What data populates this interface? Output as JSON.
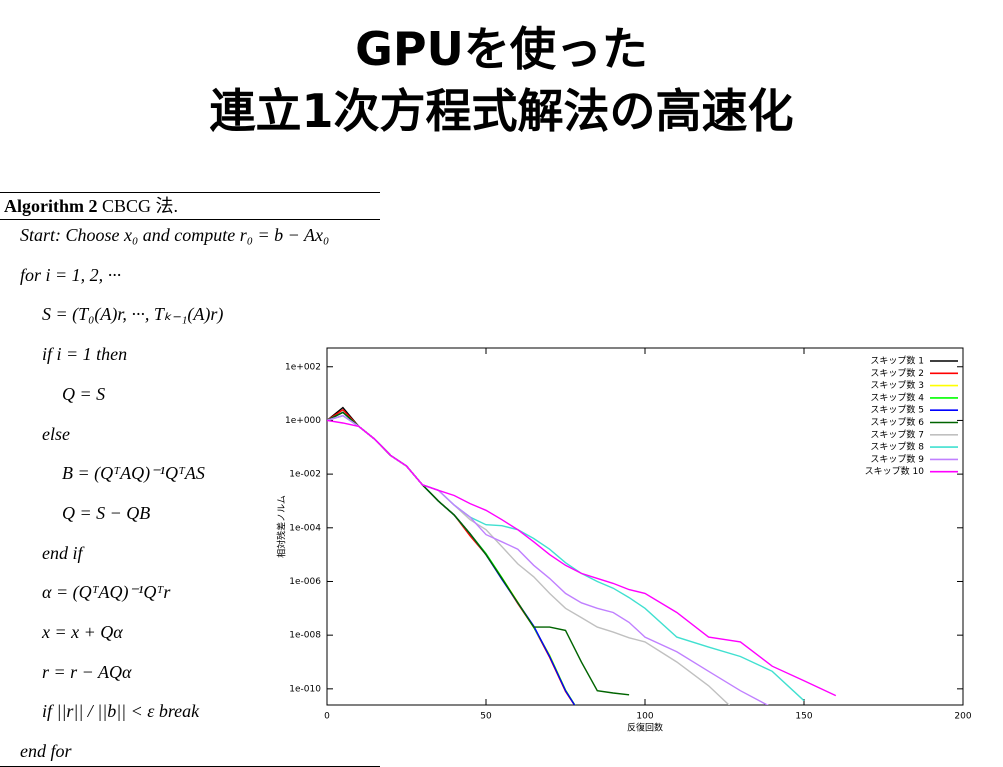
{
  "title": [
    "GPUを使った",
    "連立1次方程式解法の高速化"
  ],
  "algorithm": {
    "label": "Algorithm 2",
    "name": "CBCG 法.",
    "lines": [
      "Start: Choose x₀ and compute r₀ = b − Ax₀",
      "for i = 1, 2, ···",
      "S = (T₀(A)r, ···, Tₖ₋₁(A)r)",
      "if i = 1 then",
      "Q = S",
      "else",
      "B = (QᵀAQ)⁻¹QᵀAS",
      "Q = S − QB",
      "end if",
      "α = (QᵀAQ)⁻¹Qᵀr",
      "x = x + Qα",
      "r = r − AQα",
      "if ||r|| / ||b|| < ε break",
      "end for"
    ]
  },
  "chart_data": {
    "type": "line",
    "xlabel": "反復回数",
    "ylabel": "相対残差ノルム",
    "log_y": true,
    "xlim": [
      0,
      200
    ],
    "xticks": [
      0,
      50,
      100,
      150,
      200
    ],
    "ylim": [
      2.5e-11,
      500
    ],
    "yticks": [
      {
        "value": 1e-10,
        "label": "1e-010"
      },
      {
        "value": 1e-08,
        "label": "1e-008"
      },
      {
        "value": 1e-06,
        "label": "1e-006"
      },
      {
        "value": 0.0001,
        "label": "1e-004"
      },
      {
        "value": 0.01,
        "label": "1e-002"
      },
      {
        "value": 1,
        "label": "1e+000"
      },
      {
        "value": 100,
        "label": "1e+002"
      }
    ],
    "x": [
      0,
      5,
      10,
      15,
      20,
      25,
      30,
      35,
      40,
      45,
      50,
      55,
      60,
      65,
      70,
      75,
      80,
      85,
      90,
      95,
      100,
      110,
      120,
      130,
      140,
      150,
      160
    ],
    "series": [
      {
        "name": "スキップ数 1",
        "color": "#000000",
        "values": [
          1,
          3,
          0.6,
          0.2,
          0.05,
          0.02,
          0.004,
          0.001,
          0.0003,
          6e-05,
          1e-05,
          1.3e-06,
          1.6e-07,
          2e-08,
          1.6e-09,
          8.5e-11,
          1e-11,
          null,
          null,
          null,
          null,
          null,
          null,
          null,
          null,
          null,
          null
        ]
      },
      {
        "name": "スキップ数 2",
        "color": "#ff0000",
        "values": [
          1,
          2.5,
          0.6,
          0.2,
          0.05,
          0.02,
          0.004,
          0.001,
          0.0003,
          5e-05,
          1e-05,
          1.3e-06,
          1.5e-07,
          2e-08,
          1.5e-09,
          8e-11,
          1e-11,
          null,
          null,
          null,
          null,
          null,
          null,
          null,
          null,
          null,
          null
        ]
      },
      {
        "name": "スキップ数 3",
        "color": "#ffff00",
        "values": [
          1,
          2,
          0.6,
          0.2,
          0.05,
          0.02,
          0.004,
          0.001,
          0.0003,
          6e-05,
          1e-05,
          1.4e-06,
          1.7e-07,
          2e-08,
          1.8e-09,
          9e-11,
          1e-11,
          null,
          null,
          null,
          null,
          null,
          null,
          null,
          null,
          null,
          null
        ]
      },
      {
        "name": "スキップ数 4",
        "color": "#00ff00",
        "values": [
          1,
          2,
          0.6,
          0.2,
          0.05,
          0.02,
          0.004,
          0.001,
          0.0003,
          6e-05,
          1.1e-05,
          1.4e-06,
          1.6e-07,
          2e-08,
          1.7e-09,
          9e-11,
          1e-11,
          null,
          null,
          null,
          null,
          null,
          null,
          null,
          null,
          null,
          null
        ]
      },
      {
        "name": "スキップ数 5",
        "color": "#0000ff",
        "values": [
          1,
          2,
          0.6,
          0.2,
          0.05,
          0.02,
          0.004,
          0.001,
          0.0003,
          6e-05,
          1e-05,
          1.2e-06,
          1.6e-07,
          2.2e-08,
          1.6e-09,
          8.5e-11,
          1e-11,
          null,
          null,
          null,
          null,
          null,
          null,
          null,
          null,
          null,
          null
        ]
      },
      {
        "name": "スキップ数 6",
        "color": "#006400",
        "values": [
          1,
          2,
          0.6,
          0.2,
          0.05,
          0.02,
          0.004,
          0.001,
          0.0003,
          6e-05,
          1e-05,
          1.3e-06,
          1.6e-07,
          2e-08,
          2e-08,
          1.5e-08,
          1e-09,
          8.5e-11,
          7e-11,
          6e-11,
          null,
          null,
          null,
          null,
          null,
          null,
          null
        ]
      },
      {
        "name": "スキップ数 7",
        "color": "#c0c0c0",
        "values": [
          1,
          1.5,
          0.6,
          0.2,
          0.05,
          0.02,
          0.004,
          0.0025,
          0.0007,
          0.0002,
          8.5e-05,
          2e-05,
          4.5e-06,
          1.5e-06,
          3.6e-07,
          1e-07,
          4.5e-08,
          2e-08,
          1.3e-08,
          8e-09,
          5.6e-09,
          1e-09,
          1.3e-10,
          1e-11,
          null,
          null,
          null
        ]
      },
      {
        "name": "スキップ数 8",
        "color": "#40e0d0",
        "values": [
          1,
          1.5,
          0.6,
          0.2,
          0.05,
          0.02,
          0.004,
          0.0025,
          0.0007,
          0.00025,
          0.00013,
          0.00012,
          8.5e-05,
          4e-05,
          1.6e-05,
          5e-06,
          2e-06,
          1e-06,
          5.6e-07,
          2.5e-07,
          1e-07,
          8.5e-09,
          3.6e-09,
          1.6e-09,
          4.5e-10,
          3.6e-11,
          null
        ]
      },
      {
        "name": "スキップ数 9",
        "color": "#c080ff",
        "values": [
          1,
          1.5,
          0.6,
          0.2,
          0.05,
          0.02,
          0.004,
          0.0025,
          0.0007,
          0.00025,
          5.6e-05,
          3e-05,
          1.6e-05,
          4e-06,
          1.3e-06,
          3.6e-07,
          1.6e-07,
          1e-07,
          7e-08,
          3e-08,
          8.5e-09,
          2.4e-09,
          4.5e-10,
          8.5e-11,
          2e-11,
          null,
          null
        ]
      },
      {
        "name": "スキップ数 10",
        "color": "#ff00ff",
        "values": [
          1,
          0.8,
          0.6,
          0.2,
          0.05,
          0.02,
          0.004,
          0.0025,
          0.0016,
          0.0008,
          0.00045,
          0.0002,
          8.5e-05,
          3e-05,
          1e-05,
          4e-06,
          2e-06,
          1.3e-06,
          8.5e-07,
          5e-07,
          3.6e-07,
          7e-08,
          8.5e-09,
          5.6e-09,
          7e-10,
          2e-10,
          5.6e-11
        ]
      }
    ]
  }
}
